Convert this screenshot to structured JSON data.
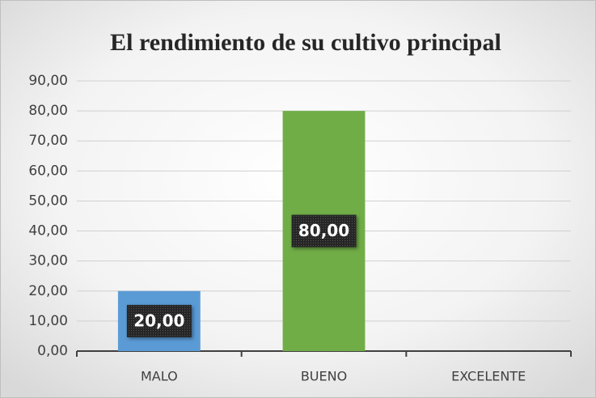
{
  "chart_data": {
    "type": "bar",
    "title": "El rendimiento de su cultivo principal",
    "categories": [
      "MALO",
      "BUENO",
      "EXCELENTE"
    ],
    "values": [
      20,
      80,
      0
    ],
    "value_labels": [
      "20,00",
      "80,00",
      null
    ],
    "colors": [
      "#5b9bd5",
      "#70ad47",
      "#a5a5a5"
    ],
    "ylim": [
      0,
      90
    ],
    "yticks": [
      {
        "value": 0,
        "label": "0,00"
      },
      {
        "value": 10,
        "label": "10,00"
      },
      {
        "value": 20,
        "label": "20,00"
      },
      {
        "value": 30,
        "label": "30,00"
      },
      {
        "value": 40,
        "label": "40,00"
      },
      {
        "value": 50,
        "label": "50,00"
      },
      {
        "value": 60,
        "label": "60,00"
      },
      {
        "value": 70,
        "label": "70,00"
      },
      {
        "value": 80,
        "label": "80,00"
      },
      {
        "value": 90,
        "label": "90,00"
      }
    ],
    "grid": true
  }
}
